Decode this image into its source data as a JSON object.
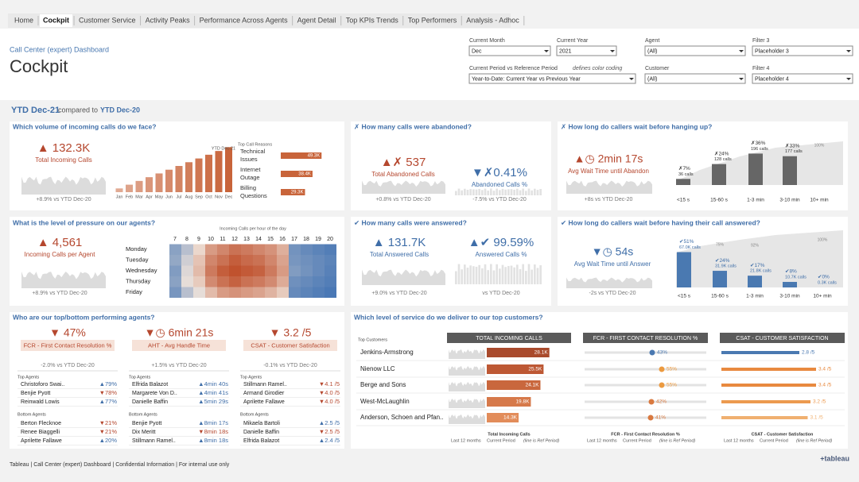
{
  "tabs": [
    "Home",
    "Cockpit",
    "Customer Service",
    "Activity Peaks",
    "Performance Across Agents",
    "Agent Detail",
    "Top KPIs Trends",
    "Top Performers",
    "Analysis - Adhoc"
  ],
  "active_tab": 1,
  "header": {
    "subtitle": "Call Center (expert) Dashboard",
    "title": "Cockpit"
  },
  "filters": [
    {
      "label": "Current Month",
      "value": "Dec"
    },
    {
      "label": "Current Year",
      "value": "2021"
    },
    {
      "label": "Agent",
      "value": "(All)"
    },
    {
      "label": "Filter 3",
      "value": "Placeholder 3"
    },
    {
      "label": "Current Period vs Reference Period",
      "note": "defines color coding",
      "value": "Year-to-Date: Current Year vs Previous Year"
    },
    {
      "label": "Customer",
      "value": "(All)"
    },
    {
      "label": "Filter 4",
      "value": "Placeholder 4"
    }
  ],
  "period": {
    "current": "YTD Dec-21",
    "text": "compared to",
    "reference": "YTD Dec-20"
  },
  "panels": {
    "volume": {
      "question": "Which volume of incoming calls do we face?",
      "kpi": {
        "value": "▲ 132.3K",
        "label": "Total Incoming Calls",
        "delta": "+8.9% vs YTD Dec-20",
        "color": "#b5472e"
      },
      "months": {
        "categories": [
          "Jan",
          "Feb",
          "Mar",
          "Apr",
          "May",
          "Jun",
          "Jul",
          "Aug",
          "Sep",
          "Oct",
          "Nov",
          "Dec"
        ],
        "values": [
          11,
          22,
          33,
          44,
          55,
          66,
          77,
          88,
          99,
          110,
          121,
          132.3
        ],
        "ylim": [
          0,
          140
        ],
        "color": "#c8643a",
        "annotation": "YTD Dec-21"
      },
      "reasons": {
        "title": "Top Call Reasons",
        "categories": [
          "Technical Issues",
          "Internet Outage",
          "Billing Questions"
        ],
        "values": [
          49300,
          38400,
          29300
        ],
        "value_labels": [
          "49.3K",
          "38.4K",
          "29.3K"
        ],
        "xlim": [
          0,
          50000
        ],
        "color": "#c8643a"
      }
    },
    "abandoned": {
      "question": "✗ How many calls were abandoned?",
      "kpis": [
        {
          "value": "▲✗ 537",
          "label": "Total Abandoned Calls",
          "delta": "+0.8% vs YTD Dec-20",
          "color": "#b5472e"
        },
        {
          "value": "▼✗0.41%",
          "label": "Abandoned Calls %",
          "delta": "-7.5% vs YTD Dec-20",
          "color": "#3f6ea8"
        }
      ]
    },
    "abandon_wait": {
      "question": "✗ How long do callers wait before hanging up?",
      "kpi": {
        "value": "▲◷ 2min 17s",
        "label": "Avg Wait Time until Abandon",
        "delta": "+8s vs YTD Dec-20",
        "color": "#b5472e"
      },
      "buckets": {
        "categories": [
          "<15 s",
          "15-60 s",
          "1-3 min",
          "3-10 min",
          "10+ min"
        ],
        "values": [
          7,
          24,
          36,
          33,
          null
        ],
        "value_labels": [
          "✗7%",
          "✗24%",
          "✗36%",
          "✗33%",
          null
        ],
        "calls": [
          "36 calls",
          "128 calls",
          "196 calls",
          "177 calls",
          null
        ],
        "ylim": [
          0,
          40
        ],
        "color": "#666666",
        "cumulative_labels": [
          "100%"
        ]
      }
    },
    "pressure": {
      "question": "What is the level of pressure on our agents?",
      "kpi": {
        "value": "▲ 4,561",
        "label": "Incoming Calls per Agent",
        "delta": "+8.9% vs YTD Dec-20",
        "color": "#b5472e"
      },
      "heatmap": {
        "title": "Incoming Calls per hour of the day",
        "days": [
          "Monday",
          "Tuesday",
          "Wednesday",
          "Thursday",
          "Friday"
        ],
        "hours": [
          7,
          8,
          9,
          10,
          11,
          12,
          13,
          14,
          15,
          16,
          17,
          18,
          19,
          20
        ],
        "values": [
          [
            30,
            40,
            55,
            70,
            75,
            80,
            78,
            75,
            72,
            65,
            25,
            22,
            20,
            18
          ],
          [
            32,
            45,
            60,
            75,
            80,
            85,
            82,
            80,
            75,
            68,
            26,
            24,
            22,
            20
          ],
          [
            28,
            48,
            62,
            78,
            85,
            88,
            86,
            84,
            78,
            70,
            28,
            25,
            22,
            19
          ],
          [
            30,
            50,
            58,
            74,
            80,
            84,
            80,
            78,
            74,
            66,
            24,
            22,
            20,
            18
          ],
          [
            26,
            40,
            50,
            62,
            70,
            72,
            70,
            68,
            64,
            58,
            22,
            20,
            18,
            16
          ]
        ],
        "color_low": "#4a78b5",
        "color_mid": "#efe3da",
        "color_high": "#c0522e"
      }
    },
    "answered": {
      "question": "✔ How many calls were answered?",
      "kpis": [
        {
          "value": "▲ 131.7K",
          "label": "Total Answered Calls",
          "delta": "+9.0% vs YTD Dec-20",
          "color": "#3f6ea8"
        },
        {
          "value": "▲✔ 99.59%",
          "label": "Answered Calls %",
          "delta": "vs YTD Dec-20",
          "color": "#3f6ea8"
        }
      ]
    },
    "answer_wait": {
      "question": "✔ How long do callers wait before having their call answered?",
      "kpi": {
        "value": "▼◷ 54s",
        "label": "Avg Wait Time until Answer",
        "delta": "-2s vs YTD Dec-20",
        "color": "#3f6ea8"
      },
      "buckets": {
        "categories": [
          "<15 s",
          "15-60 s",
          "1-3 min",
          "3-10 min",
          "10+ min"
        ],
        "values": [
          51,
          24,
          17,
          8,
          0
        ],
        "value_labels": [
          "✔51%",
          "✔24%",
          "✔17%",
          "✔8%",
          "✔0%"
        ],
        "calls": [
          "67.0K calls",
          "31.9K calls",
          "21.8K calls",
          "10.7K calls",
          "0.3K calls"
        ],
        "ylim": [
          0,
          55
        ],
        "color": "#4a79b1",
        "cumulative_labels": [
          "75%",
          "92%",
          "100%"
        ]
      }
    },
    "agents": {
      "question": "Who are our top/bottom performing agents?",
      "top_label": "Top Agents",
      "bottom_label": "Bottom Agents",
      "columns": [
        {
          "kpi": {
            "value": "▼ 47%",
            "label": "FCR - First Contact Resolution %",
            "delta": "-2.0% vs YTD Dec-20",
            "color": "#b5472e"
          },
          "top": [
            {
              "name": "Christoforo Swai..",
              "value": "▲79%"
            },
            {
              "name": "Benjie Pyott",
              "value": "▼78%"
            },
            {
              "name": "Reinwald Lowis",
              "value": "▲77%"
            }
          ],
          "bottom": [
            {
              "name": "Berton Flecknoe",
              "value": "▼21%"
            },
            {
              "name": "Renee Biaggelli",
              "value": "▼21%"
            },
            {
              "name": "Aprilette Fallawe",
              "value": "▲20%"
            }
          ]
        },
        {
          "kpi": {
            "value": "▼◷ 6min 21s",
            "label": "AHT - Avg Handle Time",
            "delta": "+1.5% vs YTD Dec-20",
            "color": "#b5472e"
          },
          "top": [
            {
              "name": "Elfrida Balazot",
              "value": "▲4min 40s"
            },
            {
              "name": "Margarete Von D..",
              "value": "▲4min 41s"
            },
            {
              "name": "Danielle Baffin",
              "value": "▲5min 29s"
            }
          ],
          "bottom": [
            {
              "name": "Benjie Pyott",
              "value": "▲8min 17s"
            },
            {
              "name": "Dix Meritt",
              "value": "▼8min 18s"
            },
            {
              "name": "Stillmann Ramel..",
              "value": "▲8min 18s"
            }
          ]
        },
        {
          "kpi": {
            "value": "▼ 3.2 /5",
            "label": "CSAT - Customer Satisfaction",
            "delta": "-0.1% vs YTD Dec-20",
            "color": "#b5472e"
          },
          "top": [
            {
              "name": "Stillmann Ramel..",
              "value": "▼4.1 /5"
            },
            {
              "name": "Armand Girodier",
              "value": "▼4.0 /5"
            },
            {
              "name": "Aprilette Fallawe",
              "value": "▼4.0 /5"
            }
          ],
          "bottom": [
            {
              "name": "Mikaela Bartoli",
              "value": "▲2.5 /5"
            },
            {
              "name": "Danielle Baffin",
              "value": "▼2.5 /5"
            },
            {
              "name": "Elfrida Balazot",
              "value": "▲2.4 /5"
            }
          ]
        }
      ]
    },
    "customers": {
      "question": "Which level of service do we deliver to our top customers?",
      "column_label": "Top Customers",
      "names": [
        "Jenkins-Armstrong",
        "Nienow LLC",
        "Berge and Sons",
        "West-McLaughlin",
        "Anderson, Schoen and Pfan.."
      ],
      "period_labels": [
        "Last 12 months",
        "Current Period",
        "(line is Ref Period)"
      ],
      "columns": [
        {
          "header": "TOTAL INCOMING CALLS",
          "footer": "Total Incoming Calls",
          "values": [
            28100,
            25500,
            24100,
            19800,
            14300
          ],
          "value_labels": [
            "28.1K",
            "25.5K",
            "24.1K",
            "19.8K",
            "14.3K"
          ],
          "xlim": [
            0,
            30000
          ],
          "colors": [
            "#a94a2c",
            "#bd5834",
            "#c9673d",
            "#d6794a",
            "#e28c5a"
          ]
        },
        {
          "header": "FCR - FIRST CONTACT RESOLUTION %",
          "footer": "FCR - First Contact Resolution %",
          "values": [
            43,
            55,
            55,
            42,
            41
          ],
          "value_labels": [
            "43%",
            "55%",
            "55%",
            "42%",
            "41%"
          ],
          "xlim": [
            0,
            100
          ],
          "colors": [
            "#4a79b1",
            "#ec9a3f",
            "#ec9a3f",
            "#d9793f",
            "#d9793f"
          ]
        },
        {
          "header": "CSAT - CUSTOMER SATISFACTION",
          "footer": "CSAT - Customer Satisfaction",
          "values": [
            2.8,
            3.4,
            3.4,
            3.2,
            3.1
          ],
          "value_labels": [
            "2.8 /5",
            "3.4 /5",
            "3.4 /5",
            "3.2 /5",
            "3.1 /5"
          ],
          "xlim": [
            0,
            5
          ],
          "colors": [
            "#4a79b1",
            "#e8893f",
            "#e8893f",
            "#ec9a4f",
            "#f0b070"
          ]
        }
      ]
    }
  },
  "footer": {
    "text": "Tableau | Call Center (expert) Dashboard | Confidential Information | For internal use only",
    "logo": "+tableau"
  }
}
